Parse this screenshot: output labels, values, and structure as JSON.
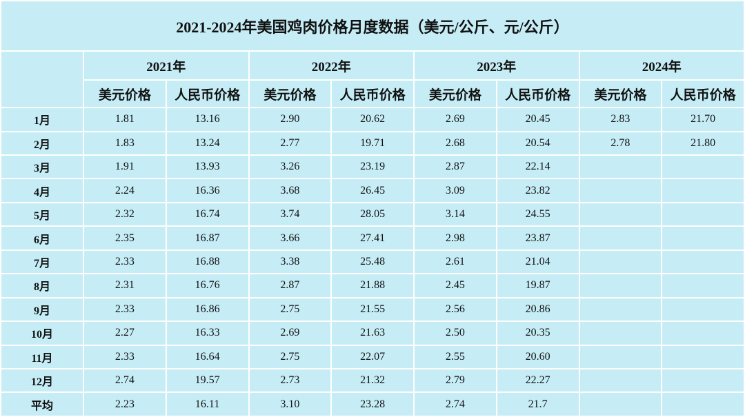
{
  "table": {
    "title": "2021-2024年美国鸡肉价格月度数据（美元/公斤、元/公斤）",
    "years": [
      "2021年",
      "2022年",
      "2023年",
      "2024年"
    ],
    "subheaders": [
      "美元价格",
      "人民币价格",
      "美元价格",
      "人民币价格",
      "美元价格",
      "人民币价格",
      "美元价格",
      "人民币价格"
    ],
    "rows": [
      {
        "label": "1月",
        "cells": [
          "1.81",
          "13.16",
          "2.90",
          "20.62",
          "2.69",
          "20.45",
          "2.83",
          "21.70"
        ]
      },
      {
        "label": "2月",
        "cells": [
          "1.83",
          "13.24",
          "2.77",
          "19.71",
          "2.68",
          "20.54",
          "2.78",
          "21.80"
        ]
      },
      {
        "label": "3月",
        "cells": [
          "1.91",
          "13.93",
          "3.26",
          "23.19",
          "2.87",
          "22.14"
        ]
      },
      {
        "label": "4月",
        "cells": [
          "2.24",
          "16.36",
          "3.68",
          "26.45",
          "3.09",
          "23.82"
        ]
      },
      {
        "label": "5月",
        "cells": [
          "2.32",
          "16.74",
          "3.74",
          "28.05",
          "3.14",
          "24.55"
        ]
      },
      {
        "label": "6月",
        "cells": [
          "2.35",
          "16.87",
          "3.66",
          "27.41",
          "2.98",
          "23.87"
        ]
      },
      {
        "label": "7月",
        "cells": [
          "2.33",
          "16.88",
          "3.38",
          "25.48",
          "2.61",
          "21.04"
        ]
      },
      {
        "label": "8月",
        "cells": [
          "2.31",
          "16.76",
          "2.87",
          "21.88",
          "2.45",
          "19.87"
        ]
      },
      {
        "label": "9月",
        "cells": [
          "2.33",
          "16.86",
          "2.75",
          "21.55",
          "2.56",
          "20.86"
        ]
      },
      {
        "label": "10月",
        "cells": [
          "2.27",
          "16.33",
          "2.69",
          "21.63",
          "2.50",
          "20.35"
        ]
      },
      {
        "label": "11月",
        "cells": [
          "2.33",
          "16.64",
          "2.75",
          "22.07",
          "2.55",
          "20.60"
        ]
      },
      {
        "label": "12月",
        "cells": [
          "2.74",
          "19.57",
          "2.73",
          "21.32",
          "2.79",
          "22.27"
        ]
      },
      {
        "label": "平均",
        "cells": [
          "2.23",
          "16.11",
          "3.10",
          "23.28",
          "2.74",
          "21.7"
        ]
      }
    ]
  }
}
